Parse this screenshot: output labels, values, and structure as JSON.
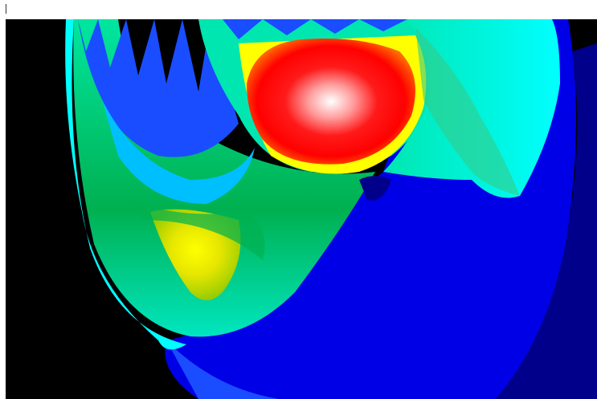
{
  "viewer": {
    "background_color": "#000000",
    "page_color": "#ffffff"
  },
  "contour_plot": {
    "colormap": [
      "#00008b",
      "#0000e6",
      "#1a4dff",
      "#00bfff",
      "#00ffff",
      "#00e6b0",
      "#33cc88",
      "#00b050",
      "#66cc33",
      "#aadd00",
      "#ffff00",
      "#ff9900",
      "#ff0000",
      "#ffffff"
    ]
  }
}
